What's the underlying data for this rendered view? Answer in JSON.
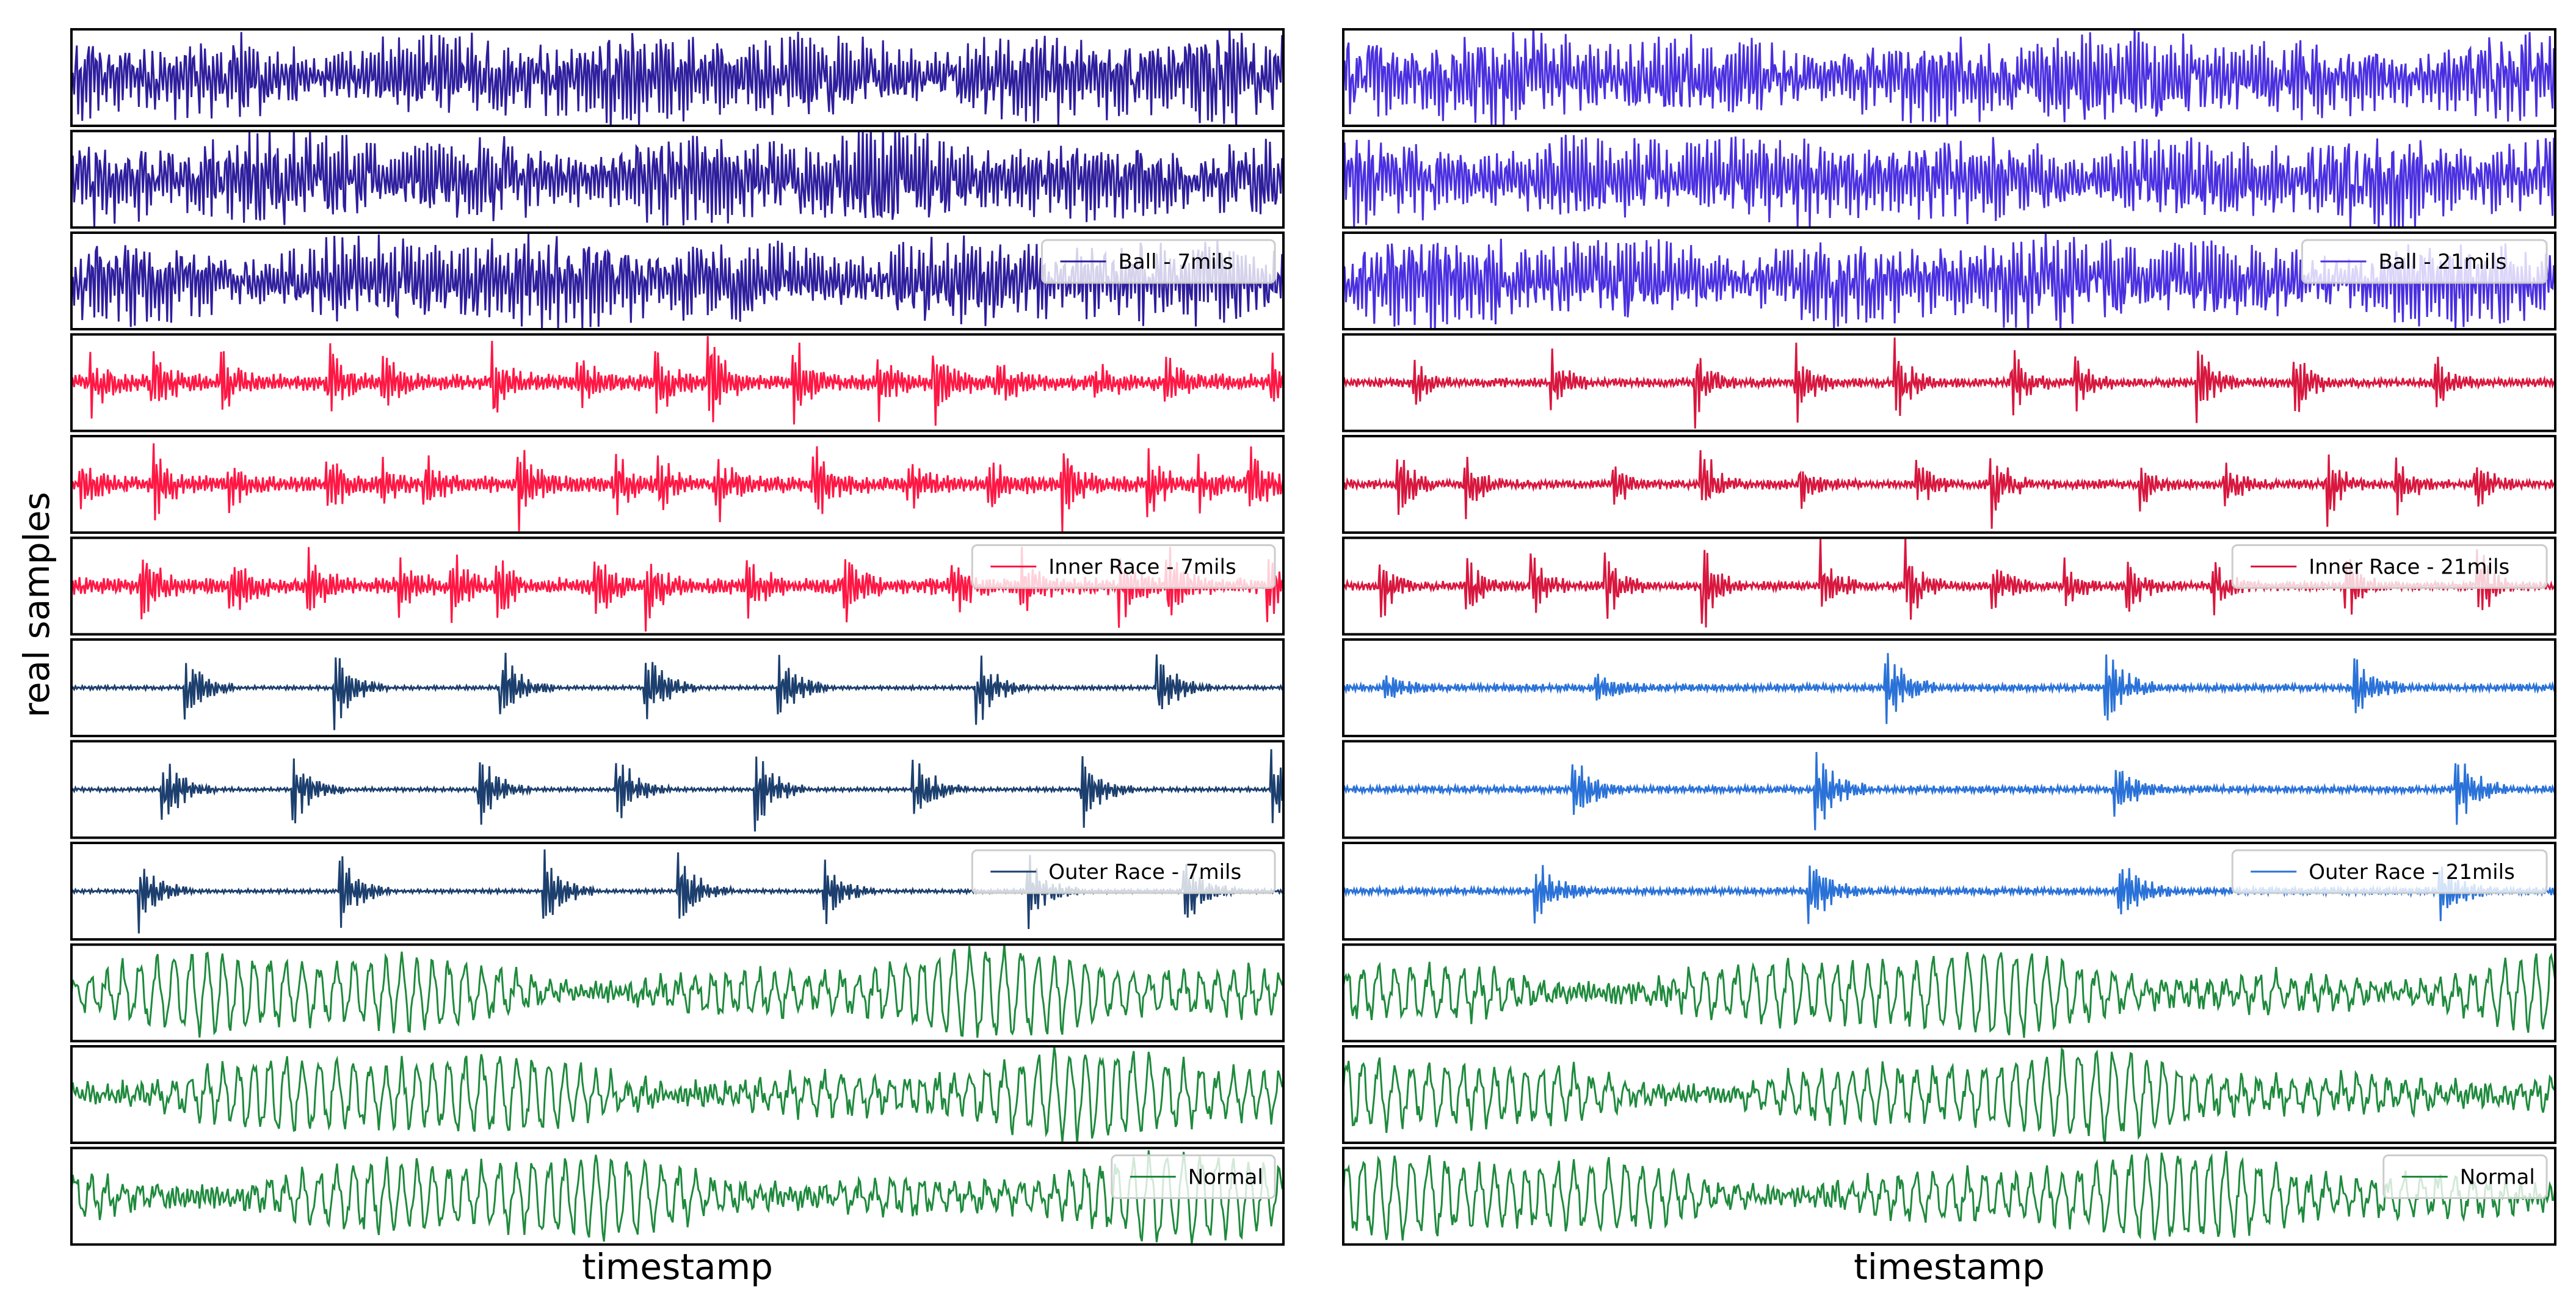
{
  "figure": {
    "ylabel": "real samples",
    "xlabel_left": "timestamp",
    "xlabel_right": "timestamp"
  },
  "chart_data": [
    {
      "type": "line",
      "column": "left",
      "xlabel": "timestamp",
      "ylabel": "real samples",
      "grid": false,
      "panels": [
        {
          "group": "Ball - 7mils",
          "color": "#2e1e9c",
          "pattern": "dense",
          "seed": 11,
          "legend": ""
        },
        {
          "group": "Ball - 7mils",
          "color": "#2e1e9c",
          "pattern": "dense",
          "seed": 12,
          "legend": ""
        },
        {
          "group": "Ball - 7mils",
          "color": "#2e1e9c",
          "pattern": "dense",
          "seed": 13,
          "legend": "Ball - 7mils",
          "legend_position": "upper right"
        },
        {
          "group": "Inner Race - 7mils",
          "color": "#ff1744",
          "pattern": "inner",
          "seed": 21,
          "legend": ""
        },
        {
          "group": "Inner Race - 7mils",
          "color": "#ff1744",
          "pattern": "inner",
          "seed": 22,
          "legend": ""
        },
        {
          "group": "Inner Race - 7mils",
          "color": "#ff1744",
          "pattern": "inner",
          "seed": 23,
          "legend": "Inner Race - 7mils",
          "legend_position": "upper right"
        },
        {
          "group": "Outer Race - 7mils",
          "color": "#1c3f6e",
          "pattern": "outer",
          "seed": 31,
          "legend": ""
        },
        {
          "group": "Outer Race - 7mils",
          "color": "#1c3f6e",
          "pattern": "outer",
          "seed": 32,
          "legend": ""
        },
        {
          "group": "Outer Race - 7mils",
          "color": "#1c3f6e",
          "pattern": "outer",
          "seed": 33,
          "legend": "Outer Race - 7mils",
          "legend_position": "upper right"
        },
        {
          "group": "Normal",
          "color": "#1e8a3c",
          "pattern": "normal",
          "seed": 41,
          "legend": ""
        },
        {
          "group": "Normal",
          "color": "#1e8a3c",
          "pattern": "normal",
          "seed": 42,
          "legend": ""
        },
        {
          "group": "Normal",
          "color": "#1e8a3c",
          "pattern": "normal",
          "seed": 43,
          "legend": "Normal",
          "legend_position": "upper right"
        }
      ]
    },
    {
      "type": "line",
      "column": "right",
      "xlabel": "timestamp",
      "ylabel": "",
      "grid": false,
      "panels": [
        {
          "group": "Ball - 21mils",
          "color": "#4a2fe0",
          "pattern": "dense",
          "seed": 51,
          "legend": ""
        },
        {
          "group": "Ball - 21mils",
          "color": "#4a2fe0",
          "pattern": "dense",
          "seed": 52,
          "legend": ""
        },
        {
          "group": "Ball - 21mils",
          "color": "#4a2fe0",
          "pattern": "dense",
          "seed": 53,
          "legend": "Ball - 21mils",
          "legend_position": "upper right"
        },
        {
          "group": "Inner Race - 21mils",
          "color": "#d8173e",
          "pattern": "inner21",
          "seed": 61,
          "legend": ""
        },
        {
          "group": "Inner Race - 21mils",
          "color": "#d8173e",
          "pattern": "inner21",
          "seed": 62,
          "legend": ""
        },
        {
          "group": "Inner Race - 21mils",
          "color": "#d8173e",
          "pattern": "inner21",
          "seed": 63,
          "legend": "Inner Race - 21mils",
          "legend_position": "upper right"
        },
        {
          "group": "Outer Race - 21mils",
          "color": "#2a72d8",
          "pattern": "outer21",
          "seed": 71,
          "legend": ""
        },
        {
          "group": "Outer Race - 21mils",
          "color": "#2a72d8",
          "pattern": "outer21",
          "seed": 72,
          "legend": ""
        },
        {
          "group": "Outer Race - 21mils",
          "color": "#2a72d8",
          "pattern": "outer21",
          "seed": 73,
          "legend": "Outer Race - 21mils",
          "legend_position": "upper right"
        },
        {
          "group": "Normal",
          "color": "#1e8a3c",
          "pattern": "normal",
          "seed": 81,
          "legend": ""
        },
        {
          "group": "Normal",
          "color": "#1e8a3c",
          "pattern": "normal",
          "seed": 82,
          "legend": ""
        },
        {
          "group": "Normal",
          "color": "#1e8a3c",
          "pattern": "normal",
          "seed": 83,
          "legend": "Normal",
          "legend_position": "upper right"
        }
      ]
    }
  ]
}
